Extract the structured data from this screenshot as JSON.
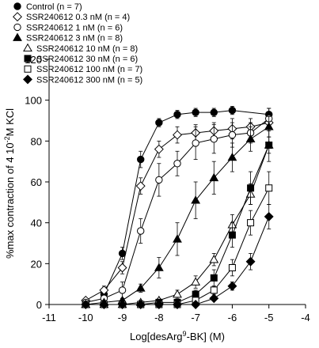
{
  "chart_data": {
    "type": "line",
    "title": "",
    "xlabel": {
      "pre": "Log[desArg",
      "sup": "9",
      "post": "-BK] (M)"
    },
    "ylabel": {
      "pre": "%max contraction of  4 10",
      "sup": "-2",
      "post": "M KCl"
    },
    "xlim": [
      -11,
      -4
    ],
    "ylim": [
      0,
      120
    ],
    "x_ticks": [
      -11,
      -10,
      -9,
      -8,
      -7,
      -6,
      -5,
      -4
    ],
    "y_ticks": [
      0,
      20,
      40,
      60,
      80,
      100,
      120
    ],
    "grid": false,
    "legend_position": "top-left",
    "x": [
      -10,
      -9.5,
      -9,
      -8.5,
      -8,
      -7.5,
      -7,
      -6.5,
      -6,
      -5.5,
      -5
    ],
    "series": [
      {
        "name": "Control (n = 7)",
        "marker": "circle-filled",
        "values": [
          null,
          5,
          25,
          71,
          89,
          93,
          94,
          94,
          95,
          null,
          93
        ],
        "errors": [
          null,
          1,
          3,
          4,
          2,
          2,
          2,
          2,
          2,
          null,
          3
        ]
      },
      {
        "name": "SSR240612 0.3 nM (n = 4)",
        "marker": "diamond-open",
        "values": [
          2,
          7,
          18,
          58,
          76,
          83,
          84,
          85,
          86,
          87,
          89
        ],
        "errors": [
          1,
          2,
          3,
          4,
          4,
          4,
          4,
          4,
          5,
          4,
          4
        ]
      },
      {
        "name": "SSR240612 1 nM (n = 6)",
        "marker": "circle-open",
        "values": [
          1,
          3,
          7,
          36,
          61,
          69,
          79,
          81,
          83,
          84,
          91
        ],
        "errors": [
          1,
          2,
          4,
          6,
          8,
          6,
          8,
          7,
          6,
          5,
          5
        ]
      },
      {
        "name": "SSR240612 3 nM (n = 8)",
        "marker": "triangle-filled",
        "values": [
          0,
          1,
          2,
          8,
          18,
          32,
          51,
          62,
          72,
          81,
          87
        ],
        "errors": [
          1,
          1,
          1,
          2,
          5,
          8,
          9,
          8,
          7,
          6,
          5
        ]
      },
      {
        "name": "SSR240612 10 nM (n = 8)",
        "marker": "triangle-open",
        "values": [
          0,
          0,
          0,
          1,
          2,
          5,
          11,
          22,
          39,
          54,
          78
        ],
        "errors": [
          1,
          1,
          1,
          1,
          1,
          2,
          3,
          3,
          5,
          5,
          4
        ]
      },
      {
        "name": "SSR240612 30 nM (n = 6)",
        "marker": "square-filled",
        "values": [
          0,
          0,
          0,
          0,
          1,
          1,
          5,
          13,
          34,
          57,
          78
        ],
        "errors": [
          1,
          1,
          1,
          1,
          1,
          1,
          2,
          4,
          6,
          8,
          8
        ]
      },
      {
        "name": "SSR240612 100 nM (n = 7)",
        "marker": "square-open",
        "values": [
          0,
          0,
          0,
          0,
          0,
          0,
          2,
          7,
          18,
          40,
          57
        ],
        "errors": [
          1,
          1,
          1,
          1,
          1,
          1,
          1,
          2,
          4,
          6,
          8
        ]
      },
      {
        "name": "SSR240612 300 nM (n = 5)",
        "marker": "diamond-filled",
        "values": [
          0,
          0,
          0,
          0,
          0,
          0,
          0,
          3,
          9,
          21,
          43
        ],
        "errors": [
          1,
          1,
          1,
          1,
          1,
          1,
          1,
          1,
          2,
          4,
          6
        ]
      }
    ]
  }
}
